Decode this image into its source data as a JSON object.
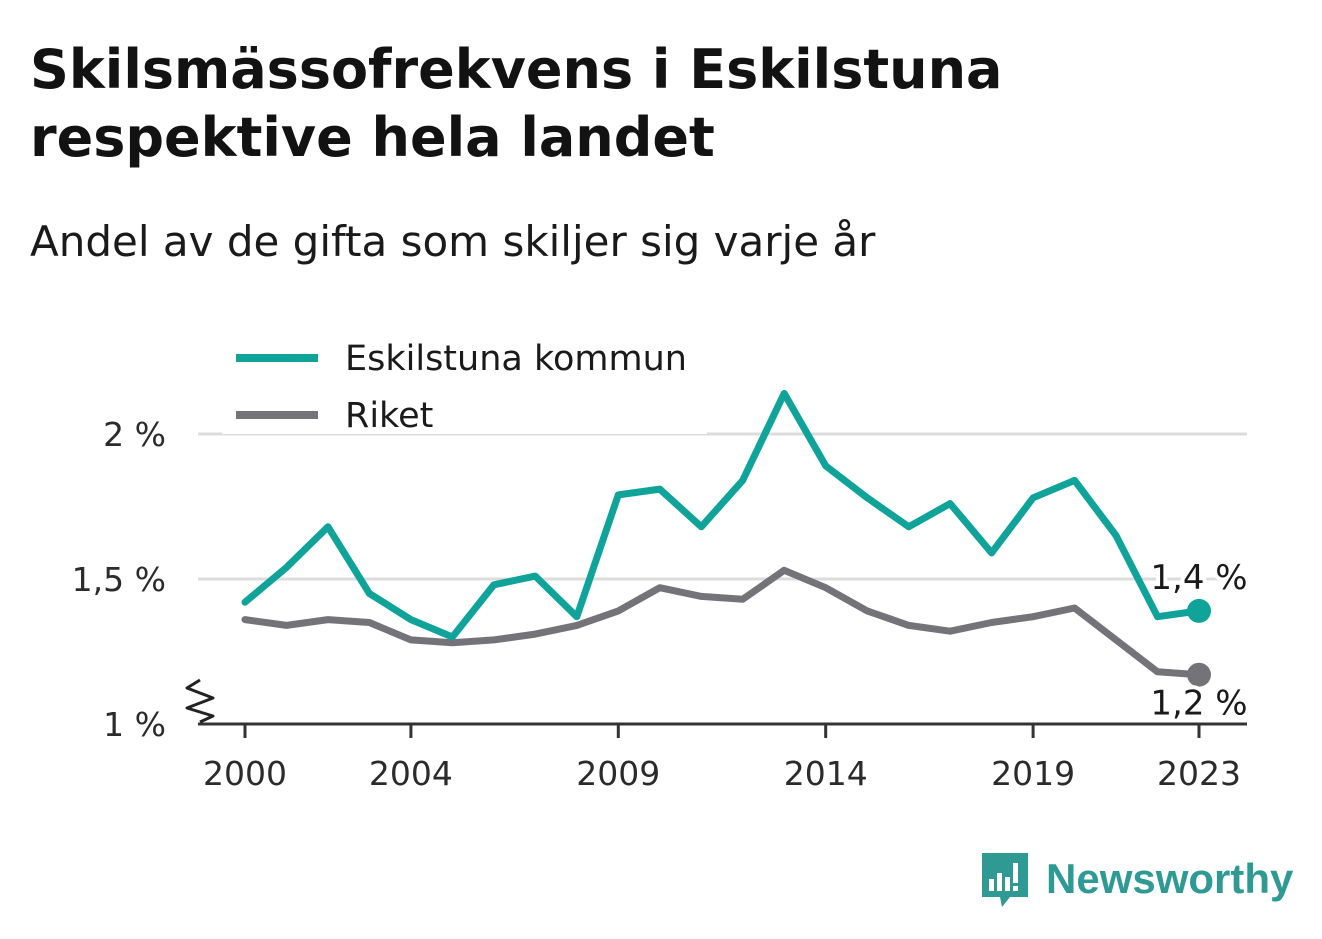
{
  "title": "Skilsmässofrekvens i Eskilstuna respektive hela landet",
  "subtitle": "Andel av de gifta som skiljer sig varje år",
  "brand": {
    "name": "Newsworthy",
    "color": "#2f9a94"
  },
  "chart_data": {
    "type": "line",
    "title": "Skilsmässofrekvens i Eskilstuna respektive hela landet",
    "subtitle": "Andel av de gifta som skiljer sig varje år",
    "xlabel": "",
    "ylabel": "",
    "x": [
      2000,
      2001,
      2002,
      2003,
      2004,
      2005,
      2006,
      2007,
      2008,
      2009,
      2010,
      2011,
      2012,
      2013,
      2014,
      2015,
      2016,
      2017,
      2018,
      2019,
      2020,
      2021,
      2022,
      2023
    ],
    "x_ticks": [
      "2000",
      "2004",
      "2009",
      "2014",
      "2019",
      "2023"
    ],
    "x_tick_values": [
      2000,
      2004,
      2009,
      2014,
      2019,
      2023
    ],
    "y_ticks": [
      "1 %",
      "1,5 %",
      "2 %"
    ],
    "y_tick_values": [
      1.0,
      1.5,
      2.0
    ],
    "xlim": [
      2000,
      2023
    ],
    "ylim": [
      1.0,
      2.15
    ],
    "y_axis_break": true,
    "grid": true,
    "legend_position": "top-left",
    "series": [
      {
        "name": "Eskilstuna kommun",
        "color": "#0fa39a",
        "values": [
          1.42,
          1.54,
          1.68,
          1.45,
          1.36,
          1.3,
          1.48,
          1.51,
          1.37,
          1.79,
          1.81,
          1.68,
          1.84,
          2.14,
          1.89,
          1.78,
          1.68,
          1.76,
          1.59,
          1.78,
          1.84,
          1.65,
          1.37,
          1.39
        ],
        "end_label": "1,4 %"
      },
      {
        "name": "Riket",
        "color": "#74737a",
        "values": [
          1.36,
          1.34,
          1.36,
          1.35,
          1.29,
          1.28,
          1.29,
          1.31,
          1.34,
          1.39,
          1.47,
          1.44,
          1.43,
          1.53,
          1.47,
          1.39,
          1.34,
          1.32,
          1.35,
          1.37,
          1.4,
          1.29,
          1.18,
          1.17
        ],
        "end_label": "1,2 %"
      }
    ]
  }
}
